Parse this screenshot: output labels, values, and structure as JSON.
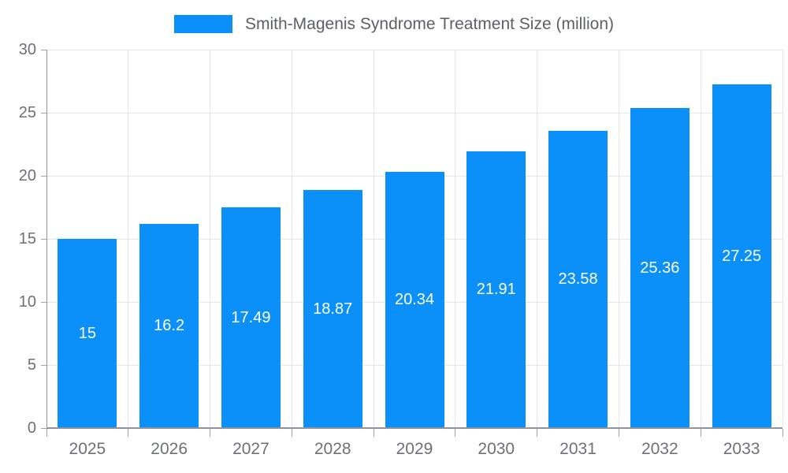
{
  "chart_data": {
    "type": "bar",
    "title": "Smith-Magenis Syndrome Treatment Size (million)",
    "categories": [
      "2025",
      "2026",
      "2027",
      "2028",
      "2029",
      "2030",
      "2031",
      "2032",
      "2033"
    ],
    "values": [
      15,
      16.2,
      17.49,
      18.87,
      20.34,
      21.91,
      23.58,
      25.36,
      27.25
    ],
    "value_labels": [
      "15",
      "16.2",
      "17.49",
      "18.87",
      "20.34",
      "21.91",
      "23.58",
      "25.36",
      "27.25"
    ],
    "xlabel": "",
    "ylabel": "",
    "ylim": [
      0,
      30
    ],
    "y_ticks": [
      0,
      5,
      10,
      15,
      20,
      25,
      30
    ],
    "grid": "horizontal and vertical gridlines on",
    "legend_position": "top-center",
    "colors": {
      "bar": "#0b90fa",
      "value_label": "#ffffff",
      "axis_label": "#6e7079",
      "legend_text": "#5b6066",
      "grid_line": "#e3e6ec",
      "axis_line": "#8f949c",
      "tick_mark": "#9da3ab",
      "background": "#ffffff"
    }
  }
}
